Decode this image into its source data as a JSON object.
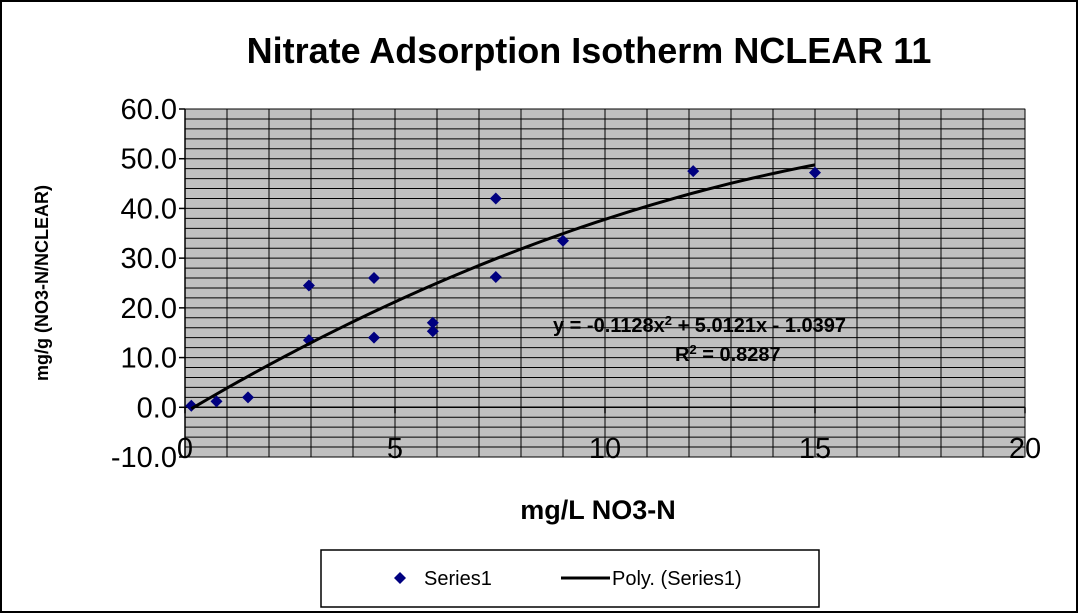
{
  "chart_data": {
    "type": "scatter",
    "title": "Nitrate Adsorption Isotherm NCLEAR 11",
    "xlabel": "mg/L NO3-N",
    "ylabel": "mg/g (NO3-N/NCLEAR)",
    "xlim": [
      0,
      20
    ],
    "ylim": [
      -10,
      60
    ],
    "xticks": [
      0,
      5,
      10,
      15,
      20
    ],
    "yticks": [
      -10,
      0,
      10,
      20,
      30,
      40,
      50,
      60
    ],
    "ytick_labels": [
      "-10.0",
      "0.0",
      "10.0",
      "20.0",
      "30.0",
      "40.0",
      "50.0",
      "60.0"
    ],
    "grid": true,
    "plot_background": "#c0c0c0",
    "marker_color": "#000080",
    "trendline_color": "#000000",
    "series": [
      {
        "name": "Series1",
        "x": [
          0.15,
          0.75,
          1.5,
          2.95,
          2.95,
          4.5,
          4.5,
          5.9,
          5.9,
          7.4,
          7.4,
          9.0,
          12.1,
          15.0
        ],
        "y": [
          0.3,
          1.2,
          2.0,
          24.5,
          13.5,
          26.0,
          14.0,
          17.0,
          15.3,
          42.0,
          26.2,
          33.5,
          47.5,
          47.2
        ]
      }
    ],
    "trendline": {
      "name": "Poly. (Series1)",
      "type": "polynomial",
      "coefficients": [
        -0.1128,
        5.0121,
        -1.0397
      ],
      "x_range": [
        0.15,
        15.0
      ],
      "equation_line1_pre": "y = -0.1128x",
      "equation_line1_sup": "2",
      "equation_line1_post": " + 5.0121x - 1.0397",
      "equation_line2_pre": "R",
      "equation_line2_sup": "2",
      "equation_line2_post": " = 0.8287"
    },
    "legend": {
      "position": "bottom",
      "items": [
        "Series1",
        "Poly. (Series1)"
      ]
    }
  }
}
